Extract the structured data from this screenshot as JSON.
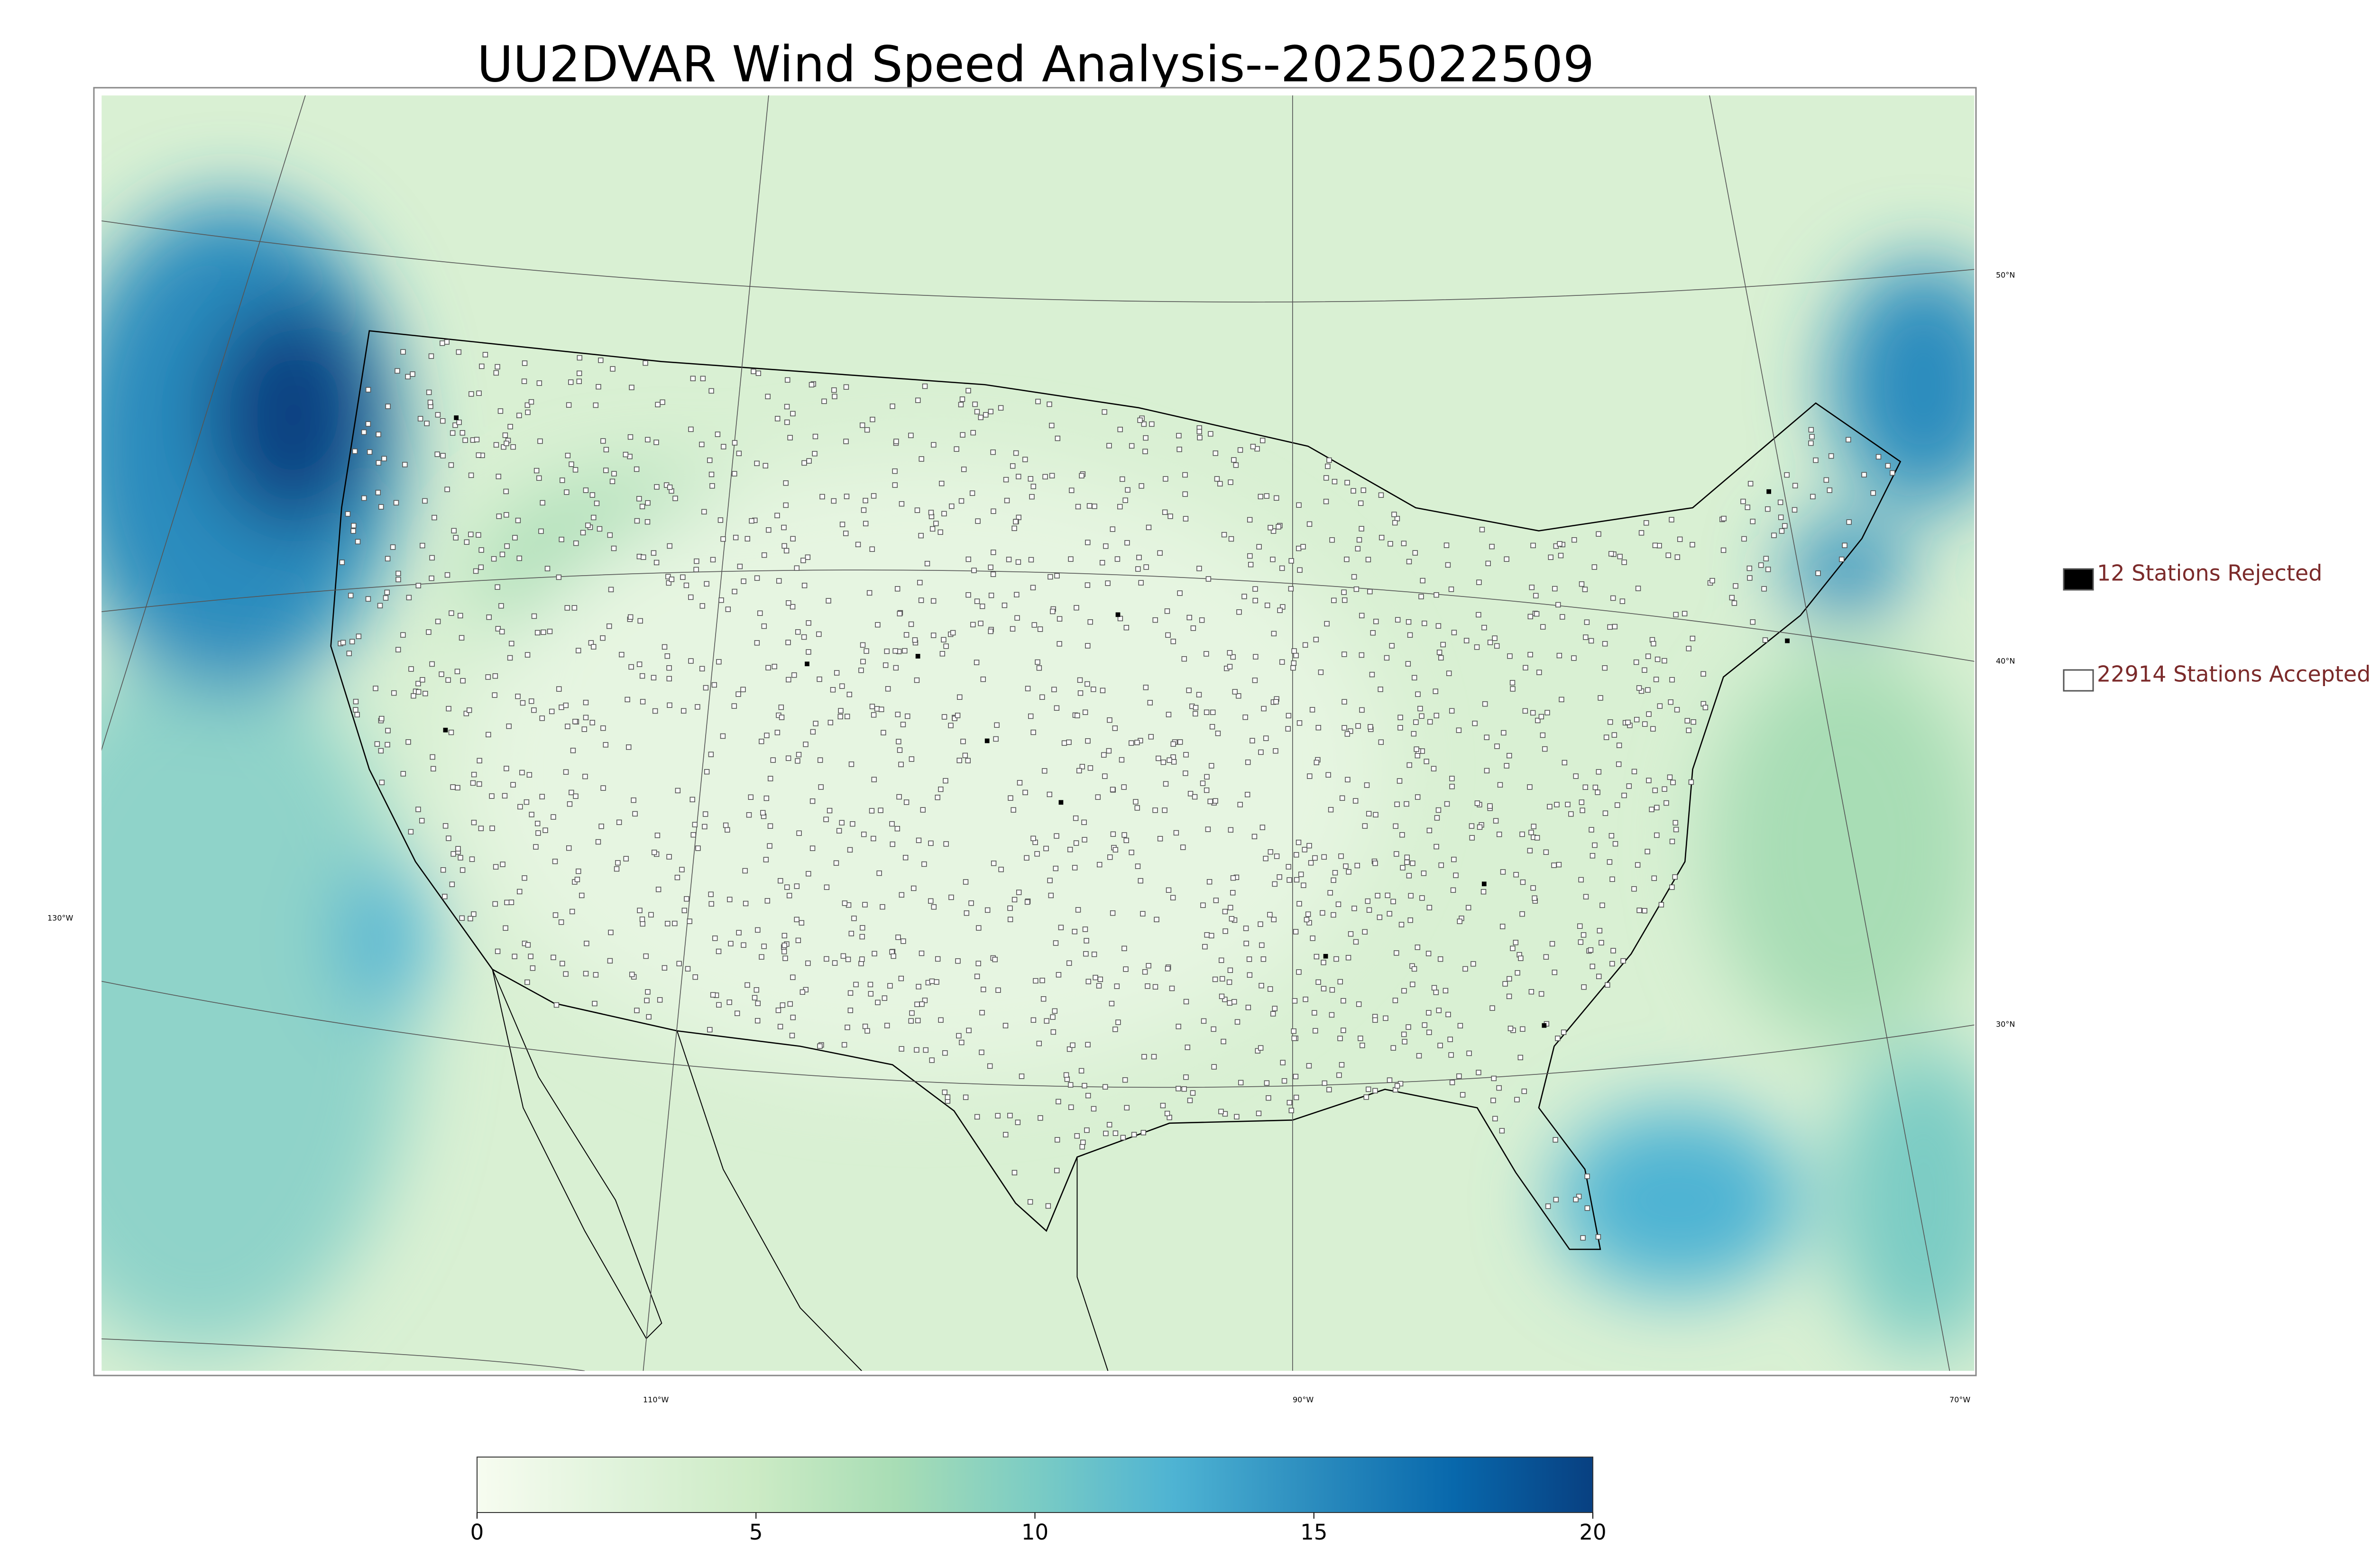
{
  "title": "UU2DVAR Wind Speed Analysis--2025022509",
  "colorbar": {
    "lim": [
      0,
      20
    ],
    "ticks": [
      0,
      5,
      10,
      15,
      20
    ],
    "colors": [
      "#f7fcf0",
      "#e0f3db",
      "#ccebc5",
      "#a8ddb5",
      "#7bccc4",
      "#4eb3d3",
      "#2b8cbe",
      "#0868ac",
      "#084081"
    ]
  },
  "legend": [
    {
      "label": "12 Stations Rejected",
      "color": "#000000"
    },
    {
      "label": "22914 Stations Accepted",
      "color": "#ffffff"
    }
  ],
  "lat_labels": [
    "50°N",
    "40°N",
    "30°N"
  ],
  "lon_labels": [
    "130°W",
    "110°W",
    "90°W",
    "70°W"
  ]
}
